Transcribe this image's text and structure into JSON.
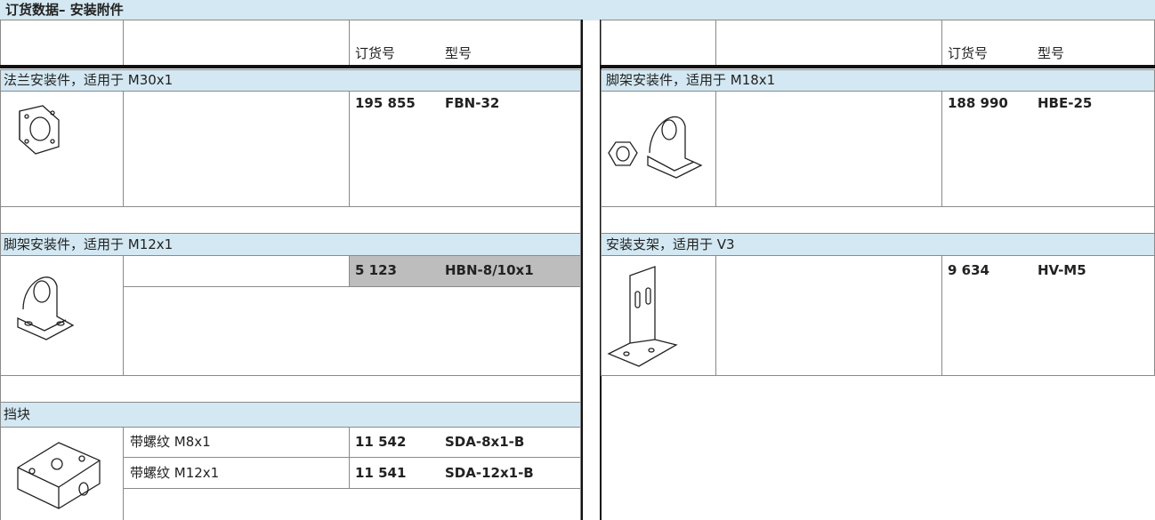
{
  "header": {
    "title": "订货数据– 安装附件"
  },
  "columns": [
    {
      "order_no": "订货号",
      "type": "型号"
    },
    {
      "order_no": "订货号",
      "type": "型号"
    }
  ],
  "left": [
    {
      "title": "法兰安装件，适用于 M30x1",
      "rows": [
        {
          "order_no": "195 855",
          "type": "FBN-32"
        }
      ]
    },
    {
      "title": "脚架安装件，适用于 M12x1",
      "rows": [
        {
          "order_no": "5 123",
          "type": "HBN-8/10x1"
        }
      ]
    },
    {
      "title": "挡块",
      "rows": [
        {
          "description": "带螺纹 M8x1",
          "order_no": "11 542",
          "type": "SDA-8x1-B"
        },
        {
          "description": "带螺纹 M12x1",
          "order_no": "11 541",
          "type": "SDA-12x1-B"
        }
      ]
    }
  ],
  "right": [
    {
      "title": "脚架安装件，适用于 M18x1",
      "rows": [
        {
          "order_no": "188 990",
          "type": "HBE-25"
        }
      ]
    },
    {
      "title": "安装支架，适用于 V3",
      "rows": [
        {
          "order_no": "9 634",
          "type": "HV-M5"
        }
      ]
    }
  ]
}
